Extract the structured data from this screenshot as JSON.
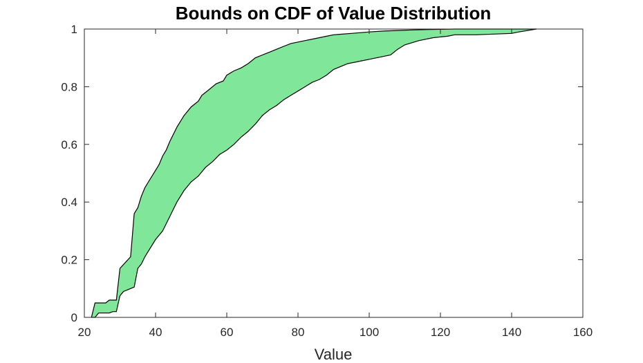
{
  "chart_data": {
    "type": "area",
    "title": "Bounds on CDF of Value Distribution",
    "xlabel": "Value",
    "ylabel": "",
    "xlim": [
      20,
      160
    ],
    "ylim": [
      0,
      1
    ],
    "xticks": [
      20,
      40,
      60,
      80,
      100,
      120,
      140,
      160
    ],
    "yticks": [
      0,
      0.2,
      0.4,
      0.6,
      0.8,
      1
    ],
    "ytick_labels": [
      "0",
      "0.2",
      "0.4",
      "0.6",
      "0.8",
      "1"
    ],
    "grid": false,
    "fill_color": "#80e69a",
    "edge_color": "#000000",
    "upper_bound": {
      "x": [
        22,
        23,
        26,
        27,
        29,
        30,
        33,
        34,
        35,
        36,
        37,
        38,
        40,
        41,
        42,
        43,
        44,
        46,
        48,
        50,
        52,
        53,
        55,
        57,
        59,
        60,
        62,
        64,
        66,
        68,
        70,
        72,
        74,
        76,
        78,
        80,
        82,
        84,
        86,
        88,
        90,
        92,
        95,
        100,
        104,
        108,
        112,
        116,
        120,
        124,
        130,
        140,
        147
      ],
      "y": [
        0,
        0.05,
        0.05,
        0.06,
        0.06,
        0.17,
        0.21,
        0.36,
        0.38,
        0.42,
        0.45,
        0.47,
        0.51,
        0.53,
        0.56,
        0.58,
        0.61,
        0.66,
        0.7,
        0.73,
        0.75,
        0.77,
        0.79,
        0.81,
        0.82,
        0.84,
        0.855,
        0.865,
        0.88,
        0.9,
        0.91,
        0.92,
        0.93,
        0.94,
        0.95,
        0.955,
        0.96,
        0.965,
        0.97,
        0.975,
        0.98,
        0.982,
        0.985,
        0.99,
        0.993,
        0.995,
        0.997,
        0.998,
        0.999,
        1,
        1,
        1,
        1
      ]
    },
    "lower_bound": {
      "x": [
        22,
        23,
        24,
        27,
        28,
        29,
        30,
        31,
        32,
        33,
        34,
        35,
        36,
        37,
        38,
        40,
        42,
        44,
        46,
        48,
        50,
        52,
        54,
        56,
        58,
        60,
        62,
        64,
        66,
        68,
        70,
        72,
        74,
        76,
        78,
        80,
        82,
        84,
        86,
        88,
        90,
        92,
        94,
        96,
        98,
        100,
        102,
        106,
        108,
        110,
        114,
        118,
        122,
        124,
        130,
        140,
        142,
        147
      ],
      "y": [
        0,
        0,
        0.015,
        0.015,
        0.02,
        0.02,
        0.075,
        0.09,
        0.095,
        0.1,
        0.105,
        0.17,
        0.185,
        0.21,
        0.23,
        0.27,
        0.3,
        0.35,
        0.4,
        0.44,
        0.47,
        0.49,
        0.52,
        0.54,
        0.565,
        0.58,
        0.6,
        0.625,
        0.645,
        0.67,
        0.7,
        0.72,
        0.735,
        0.755,
        0.77,
        0.785,
        0.8,
        0.815,
        0.825,
        0.84,
        0.86,
        0.87,
        0.88,
        0.885,
        0.89,
        0.895,
        0.9,
        0.91,
        0.93,
        0.945,
        0.96,
        0.97,
        0.975,
        0.98,
        0.98,
        0.985,
        0.99,
        1
      ]
    }
  }
}
